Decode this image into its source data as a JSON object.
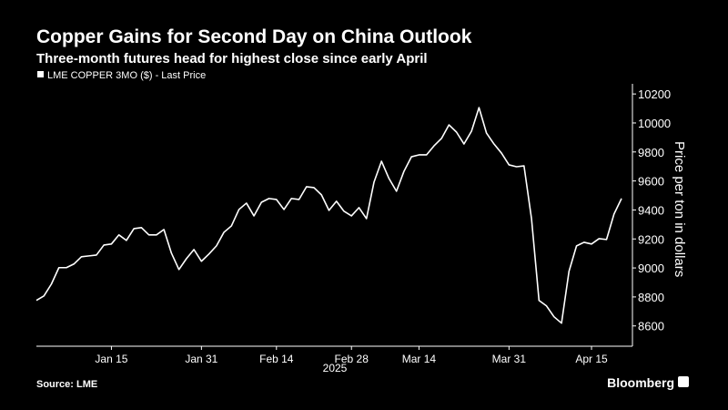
{
  "chart_data": {
    "type": "line",
    "title": "Copper Gains for Second Day on China Outlook",
    "subtitle": "Three-month futures head for highest close since early April",
    "y_label": "Price per ton in dollars",
    "x_sublabel": "2025",
    "source": "Source: LME",
    "brand": "Bloomberg",
    "categories": [
      null,
      null,
      null,
      null,
      null,
      null,
      null,
      null,
      null,
      null,
      "Jan 15",
      null,
      null,
      null,
      null,
      null,
      null,
      null,
      null,
      null,
      null,
      null,
      "Jan 31",
      null,
      null,
      null,
      null,
      null,
      null,
      null,
      null,
      null,
      "Feb 14",
      null,
      null,
      null,
      null,
      null,
      null,
      null,
      null,
      null,
      "Feb 28",
      null,
      null,
      null,
      null,
      null,
      null,
      null,
      null,
      "Mar 14",
      null,
      null,
      null,
      null,
      null,
      null,
      null,
      null,
      null,
      null,
      null,
      "Mar 31",
      null,
      null,
      null,
      null,
      null,
      null,
      null,
      null,
      null,
      null,
      "Apr 15",
      null,
      null,
      null,
      null
    ],
    "series": [
      {
        "name": "LME COPPER 3MO ($) - Last Price",
        "color": "#ffffff",
        "values": [
          8776,
          8807,
          8889,
          9002,
          9002,
          9027,
          9077,
          9083,
          9089,
          9158,
          9165,
          9228,
          9190,
          9271,
          9278,
          9228,
          9228,
          9265,
          9102,
          8989,
          9064,
          9127,
          9046,
          9096,
          9152,
          9246,
          9290,
          9403,
          9447,
          9359,
          9453,
          9479,
          9472,
          9403,
          9479,
          9472,
          9560,
          9554,
          9504,
          9397,
          9460,
          9391,
          9359,
          9416,
          9340,
          9591,
          9736,
          9617,
          9529,
          9667,
          9767,
          9780,
          9780,
          9842,
          9893,
          9987,
          9937,
          9855,
          9943,
          10106,
          9930,
          9855,
          9792,
          9711,
          9698,
          9704,
          9340,
          8776,
          8738,
          8663,
          8619,
          8977,
          9152,
          9177,
          9165,
          9202,
          9196,
          9372,
          9479
        ]
      }
    ],
    "ylim": [
      8460,
      10270
    ],
    "yticks": [
      8600,
      8800,
      9000,
      9200,
      9400,
      9600,
      9800,
      10000,
      10200
    ],
    "grid": false
  }
}
